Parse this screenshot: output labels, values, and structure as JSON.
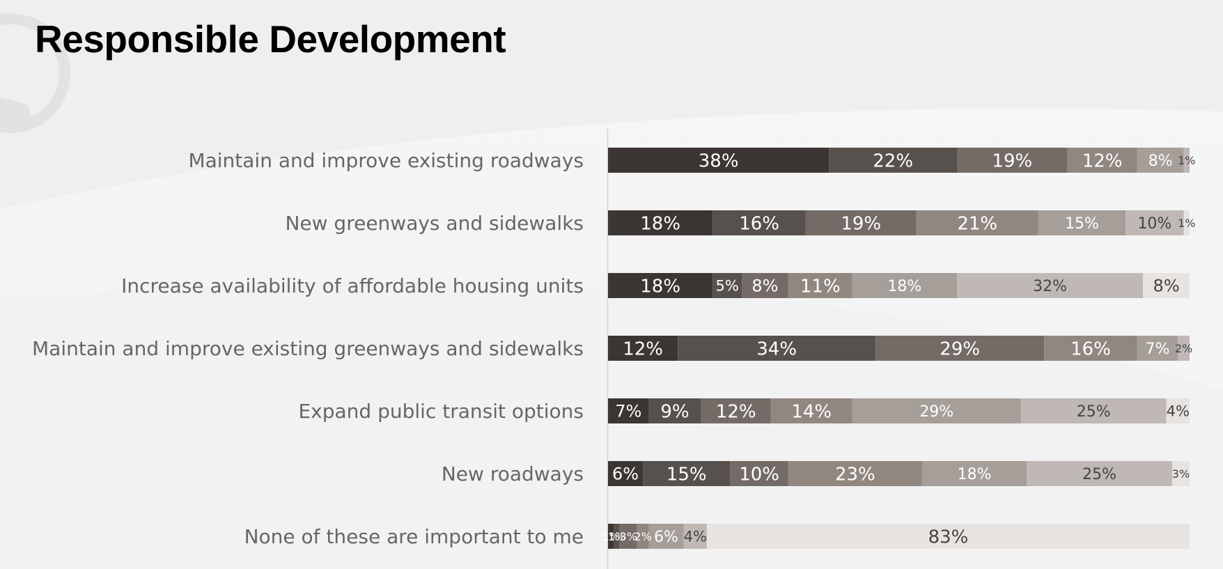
{
  "page": {
    "title": "Responsible Development"
  },
  "colors": [
    "#3b3633",
    "#57514d",
    "#746b66",
    "#918781",
    "#a69e98",
    "#c0b8b4",
    "#e7e3e1"
  ],
  "chart_data": {
    "type": "bar",
    "orientation": "horizontal",
    "stacked": true,
    "title": "Responsible Development",
    "xlim": [
      0,
      100
    ],
    "legend": "none",
    "grid": false,
    "categories": [
      "Maintain and improve existing roadways",
      "New greenways and sidewalks",
      "Increase availability of affordable housing units",
      "Maintain and improve existing greenways and sidewalks",
      "Expand public transit options",
      "New roadways",
      "None of these are important to me"
    ],
    "series": [
      {
        "values": [
          38,
          18,
          18,
          12,
          7,
          6,
          1
        ]
      },
      {
        "values": [
          22,
          16,
          5,
          34,
          9,
          15,
          1
        ]
      },
      {
        "values": [
          19,
          19,
          8,
          29,
          12,
          10,
          3
        ]
      },
      {
        "values": [
          12,
          21,
          11,
          16,
          14,
          23,
          2
        ]
      },
      {
        "values": [
          8,
          15,
          18,
          7,
          29,
          18,
          6
        ]
      },
      {
        "values": [
          1,
          10,
          32,
          2,
          25,
          25,
          4
        ]
      },
      {
        "values": [
          0,
          1,
          8,
          0,
          4,
          3,
          83
        ]
      }
    ]
  }
}
